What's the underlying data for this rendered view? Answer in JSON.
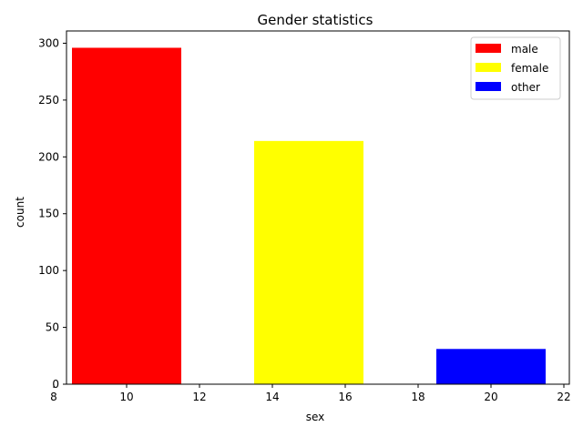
{
  "chart_data": {
    "type": "bar",
    "title": "Gender statistics",
    "xlabel": "sex",
    "ylabel": "count",
    "xlim": [
      8.35,
      22.15
    ],
    "ylim": [
      0,
      310.8
    ],
    "xticks": [
      8,
      10,
      12,
      14,
      16,
      18,
      20,
      22
    ],
    "yticks": [
      0,
      50,
      100,
      150,
      200,
      250,
      300
    ],
    "bar_width": 3,
    "grid": false,
    "legend_position": "top-right",
    "series": [
      {
        "name": "male",
        "x": 10,
        "value": 296,
        "color": "#ff0000"
      },
      {
        "name": "female",
        "x": 15,
        "value": 214,
        "color": "#ffff00"
      },
      {
        "name": "other",
        "x": 20,
        "value": 31,
        "color": "#0000ff"
      }
    ]
  }
}
